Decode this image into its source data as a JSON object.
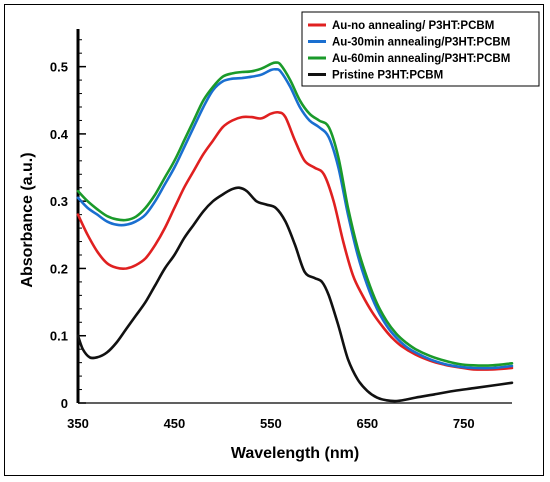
{
  "chart_data": {
    "type": "line",
    "title": "",
    "xlabel": "Wavelength (nm)",
    "ylabel": "Absorbance (a.u.)",
    "xlim": [
      350,
      800
    ],
    "ylim": [
      0,
      0.55
    ],
    "xticks": [
      350,
      450,
      550,
      650,
      750
    ],
    "yticks": [
      0,
      0.1,
      0.2,
      0.3,
      0.4,
      0.5
    ],
    "xtick_labels": [
      "350",
      "450",
      "550",
      "650",
      "750"
    ],
    "ytick_labels": [
      "0",
      "0.1",
      "0.2",
      "0.3",
      "0.4",
      "0.5"
    ],
    "grid": false,
    "legend_position": "top-right",
    "series": [
      {
        "name": "Au-no annealing/ P3HT:PCBM",
        "color": "#e02020",
        "points": [
          [
            350,
            0.28
          ],
          [
            360,
            0.25
          ],
          [
            370,
            0.225
          ],
          [
            380,
            0.208
          ],
          [
            390,
            0.201
          ],
          [
            400,
            0.2
          ],
          [
            410,
            0.205
          ],
          [
            420,
            0.215
          ],
          [
            430,
            0.235
          ],
          [
            440,
            0.26
          ],
          [
            450,
            0.29
          ],
          [
            460,
            0.32
          ],
          [
            470,
            0.345
          ],
          [
            480,
            0.37
          ],
          [
            490,
            0.39
          ],
          [
            500,
            0.41
          ],
          [
            510,
            0.42
          ],
          [
            520,
            0.425
          ],
          [
            530,
            0.425
          ],
          [
            540,
            0.423
          ],
          [
            550,
            0.43
          ],
          [
            558,
            0.432
          ],
          [
            565,
            0.425
          ],
          [
            575,
            0.39
          ],
          [
            585,
            0.36
          ],
          [
            595,
            0.35
          ],
          [
            605,
            0.34
          ],
          [
            615,
            0.3
          ],
          [
            625,
            0.24
          ],
          [
            635,
            0.19
          ],
          [
            645,
            0.16
          ],
          [
            655,
            0.135
          ],
          [
            665,
            0.115
          ],
          [
            675,
            0.098
          ],
          [
            685,
            0.085
          ],
          [
            700,
            0.072
          ],
          [
            715,
            0.063
          ],
          [
            730,
            0.057
          ],
          [
            745,
            0.053
          ],
          [
            760,
            0.05
          ],
          [
            780,
            0.05
          ],
          [
            800,
            0.052
          ]
        ]
      },
      {
        "name": "Au-30min annealing/P3HT:PCBM",
        "color": "#1a6fd0",
        "points": [
          [
            350,
            0.305
          ],
          [
            360,
            0.29
          ],
          [
            370,
            0.28
          ],
          [
            380,
            0.27
          ],
          [
            390,
            0.265
          ],
          [
            400,
            0.265
          ],
          [
            410,
            0.27
          ],
          [
            420,
            0.28
          ],
          [
            430,
            0.3
          ],
          [
            440,
            0.325
          ],
          [
            450,
            0.35
          ],
          [
            460,
            0.38
          ],
          [
            470,
            0.41
          ],
          [
            480,
            0.44
          ],
          [
            490,
            0.465
          ],
          [
            500,
            0.478
          ],
          [
            510,
            0.482
          ],
          [
            520,
            0.483
          ],
          [
            530,
            0.485
          ],
          [
            540,
            0.488
          ],
          [
            550,
            0.495
          ],
          [
            555,
            0.496
          ],
          [
            560,
            0.493
          ],
          [
            570,
            0.47
          ],
          [
            580,
            0.44
          ],
          [
            590,
            0.42
          ],
          [
            600,
            0.41
          ],
          [
            610,
            0.395
          ],
          [
            620,
            0.35
          ],
          [
            630,
            0.28
          ],
          [
            640,
            0.22
          ],
          [
            650,
            0.175
          ],
          [
            660,
            0.14
          ],
          [
            670,
            0.115
          ],
          [
            680,
            0.097
          ],
          [
            690,
            0.084
          ],
          [
            700,
            0.075
          ],
          [
            715,
            0.065
          ],
          [
            730,
            0.058
          ],
          [
            745,
            0.054
          ],
          [
            760,
            0.052
          ],
          [
            780,
            0.052
          ],
          [
            800,
            0.055
          ]
        ]
      },
      {
        "name": "Au-60min annealing/P3HT:PCBM",
        "color": "#1a9a2a",
        "points": [
          [
            350,
            0.315
          ],
          [
            360,
            0.3
          ],
          [
            370,
            0.288
          ],
          [
            380,
            0.278
          ],
          [
            390,
            0.273
          ],
          [
            400,
            0.272
          ],
          [
            410,
            0.277
          ],
          [
            420,
            0.29
          ],
          [
            430,
            0.31
          ],
          [
            440,
            0.335
          ],
          [
            450,
            0.36
          ],
          [
            460,
            0.39
          ],
          [
            470,
            0.42
          ],
          [
            480,
            0.45
          ],
          [
            490,
            0.47
          ],
          [
            500,
            0.485
          ],
          [
            510,
            0.49
          ],
          [
            520,
            0.492
          ],
          [
            530,
            0.493
          ],
          [
            540,
            0.497
          ],
          [
            550,
            0.504
          ],
          [
            555,
            0.506
          ],
          [
            560,
            0.503
          ],
          [
            570,
            0.48
          ],
          [
            580,
            0.45
          ],
          [
            590,
            0.43
          ],
          [
            600,
            0.42
          ],
          [
            610,
            0.41
          ],
          [
            620,
            0.365
          ],
          [
            630,
            0.29
          ],
          [
            640,
            0.23
          ],
          [
            650,
            0.185
          ],
          [
            660,
            0.148
          ],
          [
            670,
            0.122
          ],
          [
            680,
            0.103
          ],
          [
            690,
            0.09
          ],
          [
            700,
            0.08
          ],
          [
            715,
            0.07
          ],
          [
            730,
            0.063
          ],
          [
            745,
            0.058
          ],
          [
            760,
            0.056
          ],
          [
            780,
            0.056
          ],
          [
            800,
            0.059
          ]
        ]
      },
      {
        "name": "Pristine P3HT:PCBM",
        "color": "#111111",
        "points": [
          [
            350,
            0.1
          ],
          [
            355,
            0.08
          ],
          [
            362,
            0.068
          ],
          [
            370,
            0.068
          ],
          [
            380,
            0.075
          ],
          [
            390,
            0.09
          ],
          [
            400,
            0.11
          ],
          [
            410,
            0.13
          ],
          [
            420,
            0.15
          ],
          [
            430,
            0.175
          ],
          [
            440,
            0.2
          ],
          [
            450,
            0.22
          ],
          [
            460,
            0.245
          ],
          [
            470,
            0.265
          ],
          [
            480,
            0.285
          ],
          [
            490,
            0.3
          ],
          [
            500,
            0.31
          ],
          [
            510,
            0.318
          ],
          [
            517,
            0.32
          ],
          [
            525,
            0.315
          ],
          [
            535,
            0.3
          ],
          [
            545,
            0.295
          ],
          [
            555,
            0.29
          ],
          [
            565,
            0.27
          ],
          [
            575,
            0.235
          ],
          [
            585,
            0.195
          ],
          [
            595,
            0.186
          ],
          [
            603,
            0.18
          ],
          [
            610,
            0.16
          ],
          [
            620,
            0.115
          ],
          [
            630,
            0.065
          ],
          [
            640,
            0.035
          ],
          [
            650,
            0.018
          ],
          [
            660,
            0.008
          ],
          [
            670,
            0.004
          ],
          [
            680,
            0.003
          ],
          [
            690,
            0.005
          ],
          [
            700,
            0.008
          ],
          [
            720,
            0.013
          ],
          [
            740,
            0.018
          ],
          [
            760,
            0.022
          ],
          [
            780,
            0.026
          ],
          [
            800,
            0.03
          ]
        ]
      }
    ]
  }
}
